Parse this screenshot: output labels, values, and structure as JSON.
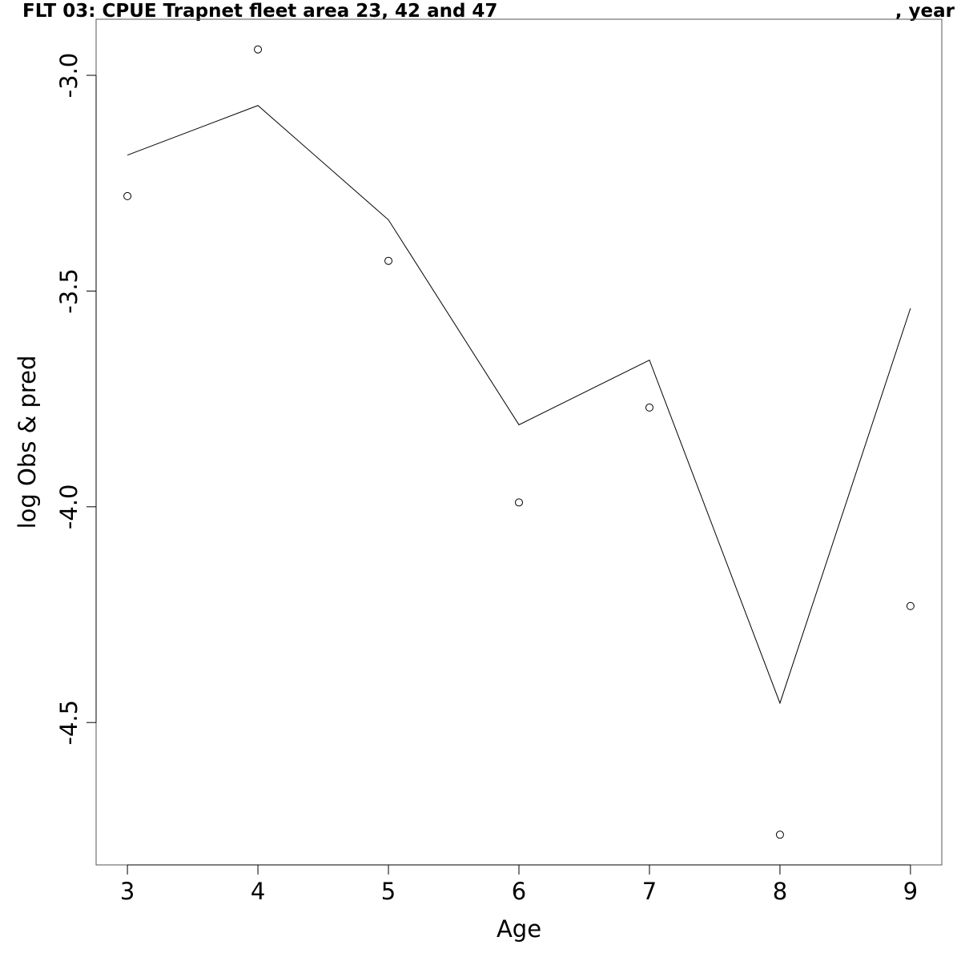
{
  "chart_data": {
    "type": "line",
    "title": "FLT 03: CPUE Trapnet fleet area 23, 42 and 47",
    "title_suffix": ", year",
    "xlabel": "Age",
    "ylabel": "log Obs & pred",
    "x": [
      3,
      4,
      5,
      6,
      7,
      8,
      9
    ],
    "x_ticks": [
      "3",
      "4",
      "5",
      "6",
      "7",
      "8",
      "9"
    ],
    "y_ticks": [
      "-3.0",
      "-3.5",
      "-4.0",
      "-4.5"
    ],
    "xlim": [
      2.76,
      9.24
    ],
    "ylim": [
      -4.83,
      -2.87
    ],
    "grid": false,
    "series": [
      {
        "kind": "points",
        "marker": "open-circle",
        "values": [
          -3.28,
          -2.94,
          -3.43,
          -3.99,
          -3.77,
          -4.76,
          -4.23
        ]
      },
      {
        "kind": "line",
        "values": [
          -3.185,
          -3.07,
          -3.335,
          -3.81,
          -3.66,
          -4.455,
          -3.54
        ]
      }
    ]
  }
}
